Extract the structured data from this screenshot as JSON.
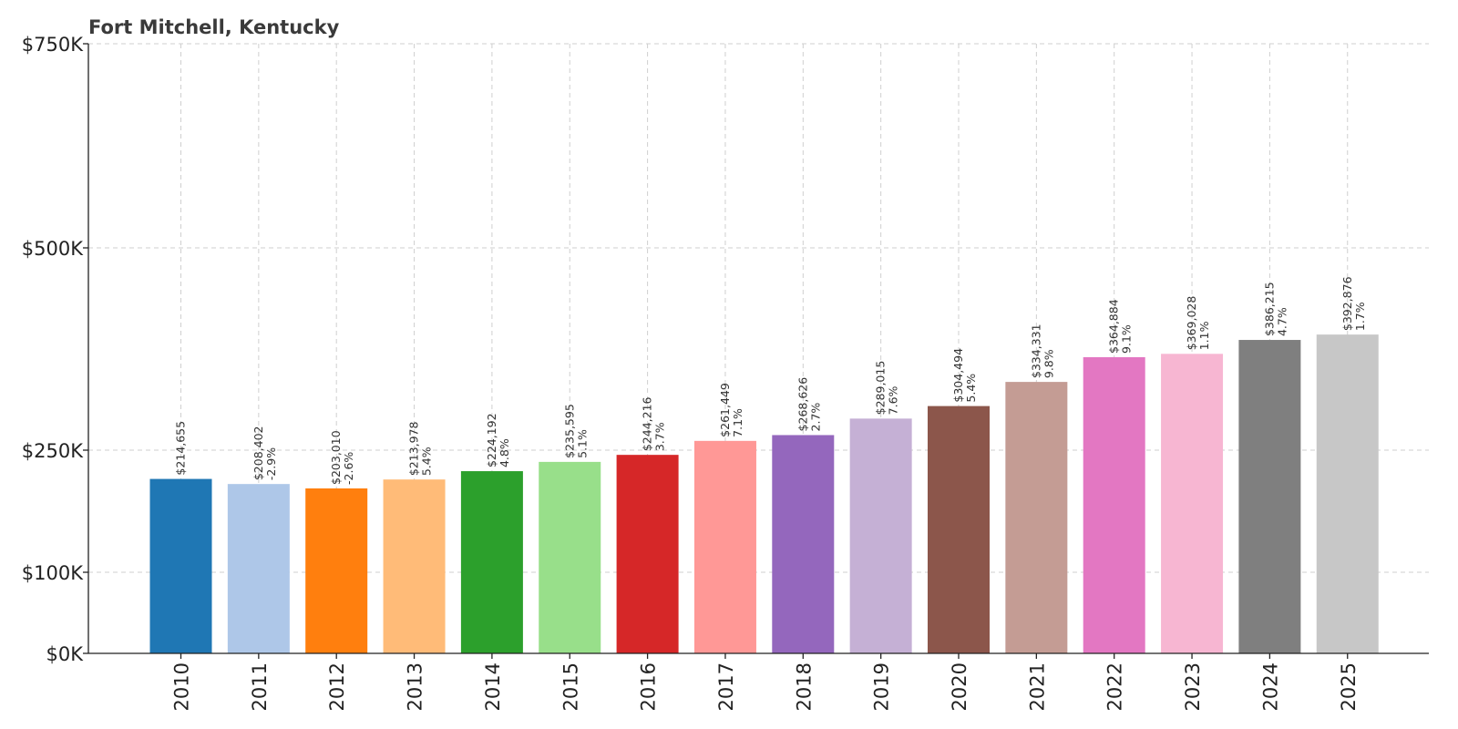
{
  "chart_data": {
    "type": "bar",
    "title": "Fort Mitchell, Kentucky",
    "xlabel": "",
    "ylabel": "",
    "categories": [
      "2010",
      "2011",
      "2012",
      "2013",
      "2014",
      "2015",
      "2016",
      "2017",
      "2018",
      "2019",
      "2020",
      "2021",
      "2022",
      "2023",
      "2024",
      "2025"
    ],
    "values": [
      214655,
      208402,
      203010,
      213978,
      224192,
      235595,
      244216,
      261449,
      268626,
      289015,
      304494,
      334331,
      364884,
      369028,
      386215,
      392876
    ],
    "value_labels": [
      "$214,655",
      "$208,402",
      "$203,010",
      "$213,978",
      "$224,192",
      "$235,595",
      "$244,216",
      "$261,449",
      "$268,626",
      "$289,015",
      "$304,494",
      "$334,331",
      "$364,884",
      "$369,028",
      "$386,215",
      "$392,876"
    ],
    "change_labels": [
      "",
      "-2.9%",
      "-2.6%",
      "5.4%",
      "4.8%",
      "5.1%",
      "3.7%",
      "7.1%",
      "2.7%",
      "7.6%",
      "5.4%",
      "9.8%",
      "9.1%",
      "1.1%",
      "4.7%",
      "1.7%"
    ],
    "colors": [
      "#1f77b4",
      "#aec7e8",
      "#ff7f0e",
      "#ffbb78",
      "#2ca02c",
      "#98df8a",
      "#d62728",
      "#ff9896",
      "#9467bd",
      "#c5b0d5",
      "#8c564b",
      "#c49c94",
      "#e377c2",
      "#f7b6d2",
      "#7f7f7f",
      "#c7c7c7"
    ],
    "yticks": [
      {
        "value": 0,
        "label": "$0K"
      },
      {
        "value": 100000,
        "label": "$100K"
      },
      {
        "value": 250000,
        "label": "$250K"
      },
      {
        "value": 500000,
        "label": "$500K"
      },
      {
        "value": 750000,
        "label": "$750K"
      }
    ],
    "ylim": [
      0,
      750000
    ],
    "grid": true
  }
}
